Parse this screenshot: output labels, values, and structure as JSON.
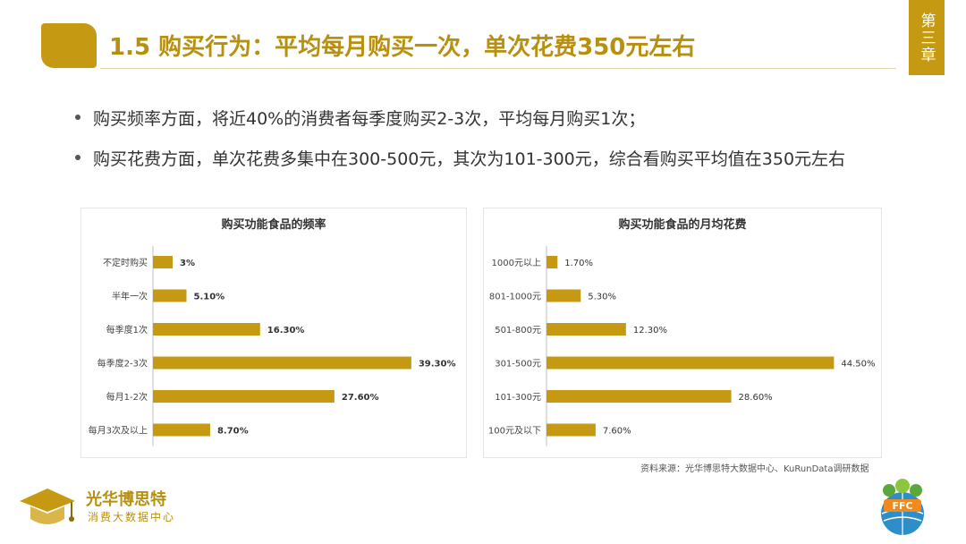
{
  "header": {
    "title": "1.5 购买行为：平均每月购买一次，单次花费350元左右",
    "chapter": "第三章"
  },
  "bullets": [
    "购买频率方面，将近40%的消费者每季度购买2-3次，平均每月购买1次；",
    "购买花费方面，单次花费多集中在300-500元，其次为101-300元，综合看购买平均值在350元左右"
  ],
  "colors": {
    "accent": "#c59a12",
    "bar": "#c59a12"
  },
  "chart_data": [
    {
      "type": "bar",
      "orientation": "horizontal",
      "title": "购买功能食品的频率",
      "categories": [
        "不定时购买",
        "半年一次",
        "每季度1次",
        "每季度2-3次",
        "每月1-2次",
        "每月3次及以上"
      ],
      "values": [
        3,
        5.1,
        16.3,
        39.3,
        27.6,
        8.7
      ],
      "labels": [
        "3%",
        "5.10%",
        "16.30%",
        "39.30%",
        "27.60%",
        "8.70%"
      ],
      "xlim": [
        0,
        40
      ],
      "grid": false
    },
    {
      "type": "bar",
      "orientation": "horizontal",
      "title": "购买功能食品的月均花费",
      "categories": [
        "1000元以上",
        "801-1000元",
        "501-800元",
        "301-500元",
        "101-300元",
        "100元及以下"
      ],
      "values": [
        1.7,
        5.3,
        12.3,
        44.5,
        28.6,
        7.6
      ],
      "labels": [
        "1.70%",
        "5.30%",
        "12.30%",
        "44.50%",
        "28.60%",
        "7.60%"
      ],
      "xlim": [
        0,
        45
      ],
      "grid": false
    }
  ],
  "source": "资料来源：光华博思特大数据中心、KuRunData调研数据",
  "logo_left": {
    "name": "光华博思特",
    "sub": "消费大数据中心"
  },
  "logo_right": {
    "name": "FFC"
  }
}
